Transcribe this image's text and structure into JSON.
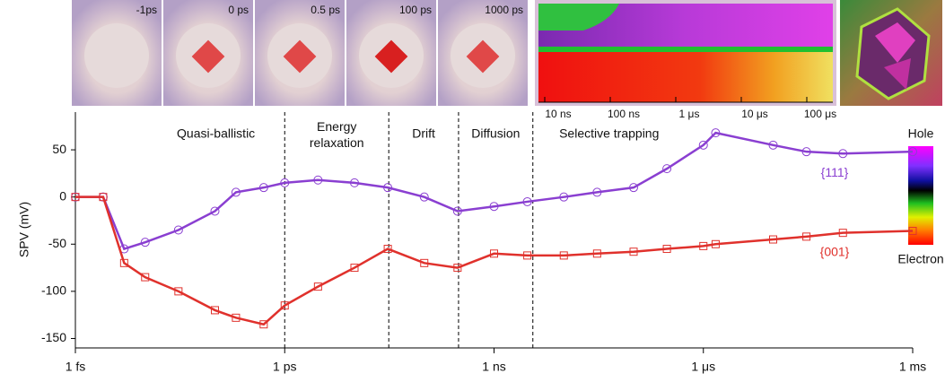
{
  "chart_data": {
    "type": "line",
    "ylabel": "SPV (mV)",
    "xscale": "log",
    "xlim": [
      1e-15,
      0.001
    ],
    "xticks": [
      {
        "value": 1e-15,
        "label": "1 fs"
      },
      {
        "value": 1e-12,
        "label": "1 ps"
      },
      {
        "value": 1e-09,
        "label": "1 ns"
      },
      {
        "value": 1e-06,
        "label": "1 μs"
      },
      {
        "value": 0.001,
        "label": "1 ms"
      }
    ],
    "ylim": [
      -160,
      90
    ],
    "yticks": [
      50,
      0,
      -50,
      -100,
      -150
    ],
    "regions": [
      "Quasi-ballistic",
      "Energy relaxation",
      "Drift",
      "Diffusion",
      "Selective trapping"
    ],
    "region_boundaries": [
      1e-12,
      3.1e-11,
      3.1e-10,
      3.6e-09
    ],
    "x": [
      1e-15,
      2.5e-15,
      5e-15,
      1e-14,
      3e-14,
      1e-13,
      2e-13,
      5e-13,
      1e-12,
      3e-12,
      1e-11,
      3e-11,
      1e-10,
      3e-10,
      1e-09,
      3e-09,
      1e-08,
      3e-08,
      1e-07,
      3e-07,
      1e-06,
      1.5e-06,
      1e-05,
      3e-05,
      0.0001,
      0.001
    ],
    "series": [
      {
        "name": "{111}",
        "color": "#8a3fd1",
        "marker": "circle",
        "values": [
          0,
          0,
          -55,
          -48,
          -35,
          -15,
          5,
          10,
          15,
          18,
          15,
          10,
          0,
          -15,
          -10,
          -5,
          0,
          5,
          10,
          30,
          55,
          68,
          55,
          48,
          46,
          48
        ]
      },
      {
        "name": "{001}",
        "color": "#e0312c",
        "marker": "square",
        "values": [
          0,
          0,
          -70,
          -85,
          -100,
          -120,
          -128,
          -135,
          -115,
          -95,
          -75,
          -55,
          -70,
          -75,
          -60,
          -62,
          -62,
          -60,
          -58,
          -55,
          -52,
          -50,
          -45,
          -42,
          -38,
          -36
        ]
      }
    ],
    "panels": [
      "-1ps",
      "0 ps",
      "0.5 ps",
      "100 ps",
      "1000 ps"
    ],
    "time_map_ticks": [
      "10 ns",
      "100 ns",
      "1 μs",
      "10 μs",
      "100 μs"
    ],
    "colorbar": {
      "top": "Hole",
      "bottom": "Electron"
    }
  }
}
